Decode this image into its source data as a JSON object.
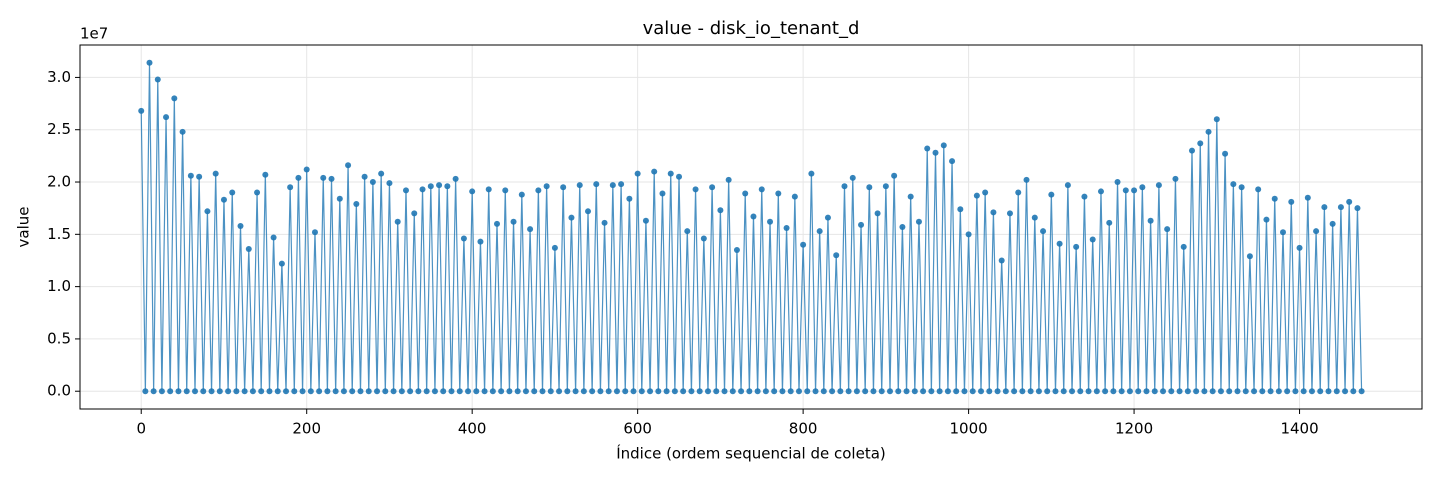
{
  "chart_data": {
    "type": "line",
    "title": "value - disk_io_tenant_d",
    "x_label": "Índice (ordem sequencial de coleta)",
    "y_label": "value",
    "y_offset_label": "1e7",
    "color": "#1f77b4",
    "grid": true,
    "xlim": [
      -74,
      1548
    ],
    "ylim": [
      -0.17,
      3.31
    ],
    "xticks": [
      0,
      200,
      400,
      600,
      800,
      1000,
      1200,
      1400
    ],
    "yticks": [
      {
        "value": 0,
        "label": "0.0"
      },
      0.5,
      {
        "value": 1,
        "label": "1.0"
      },
      1.5,
      {
        "value": 2,
        "label": "2.0"
      },
      2.5,
      {
        "value": 3,
        "label": "3.0"
      }
    ],
    "x": [
      0,
      5,
      10,
      15,
      20,
      25,
      30,
      35,
      40,
      45,
      50,
      55,
      60,
      65,
      70,
      75,
      80,
      85,
      90,
      95,
      100,
      105,
      110,
      115,
      120,
      125,
      130,
      135,
      140,
      145,
      150,
      155,
      160,
      165,
      170,
      175,
      180,
      185,
      190,
      195,
      200,
      205,
      210,
      215,
      220,
      225,
      230,
      235,
      240,
      245,
      250,
      255,
      260,
      265,
      270,
      275,
      280,
      285,
      290,
      295,
      300,
      305,
      310,
      315,
      320,
      325,
      330,
      335,
      340,
      345,
      350,
      355,
      360,
      365,
      370,
      375,
      380,
      385,
      390,
      395,
      400,
      405,
      410,
      415,
      420,
      425,
      430,
      435,
      440,
      445,
      450,
      455,
      460,
      465,
      470,
      475,
      480,
      485,
      490,
      495,
      500,
      505,
      510,
      515,
      520,
      525,
      530,
      535,
      540,
      545,
      550,
      555,
      560,
      565,
      570,
      575,
      580,
      585,
      590,
      595,
      600,
      605,
      610,
      615,
      620,
      625,
      630,
      635,
      640,
      645,
      650,
      655,
      660,
      665,
      670,
      675,
      680,
      685,
      690,
      695,
      700,
      705,
      710,
      715,
      720,
      725,
      730,
      735,
      740,
      745,
      750,
      755,
      760,
      765,
      770,
      775,
      780,
      785,
      790,
      795,
      800,
      805,
      810,
      815,
      820,
      825,
      830,
      835,
      840,
      845,
      850,
      855,
      860,
      865,
      870,
      875,
      880,
      885,
      890,
      895,
      900,
      905,
      910,
      915,
      920,
      925,
      930,
      935,
      940,
      945,
      950,
      955,
      960,
      965,
      970,
      975,
      980,
      985,
      990,
      995,
      1000,
      1005,
      1010,
      1015,
      1020,
      1025,
      1030,
      1035,
      1040,
      1045,
      1050,
      1055,
      1060,
      1065,
      1070,
      1075,
      1080,
      1085,
      1090,
      1095,
      1100,
      1105,
      1110,
      1115,
      1120,
      1125,
      1130,
      1135,
      1140,
      1145,
      1150,
      1155,
      1160,
      1165,
      1170,
      1175,
      1180,
      1185,
      1190,
      1195,
      1200,
      1205,
      1210,
      1215,
      1220,
      1225,
      1230,
      1235,
      1240,
      1245,
      1250,
      1255,
      1260,
      1265,
      1270,
      1275,
      1280,
      1285,
      1290,
      1295,
      1300,
      1305,
      1310,
      1315,
      1320,
      1325,
      1330,
      1335,
      1340,
      1345,
      1350,
      1355,
      1360,
      1365,
      1370,
      1375,
      1380,
      1385,
      1390,
      1395,
      1400,
      1405,
      1410,
      1415,
      1420,
      1425,
      1430,
      1435,
      1440,
      1445,
      1450,
      1455,
      1460,
      1465,
      1470,
      1475
    ],
    "values": [
      2.68,
      0,
      3.14,
      0,
      2.98,
      0,
      2.62,
      0,
      2.8,
      0,
      2.48,
      0,
      2.06,
      0,
      2.05,
      0,
      1.72,
      0,
      2.08,
      0,
      1.83,
      0,
      1.9,
      0,
      1.58,
      0,
      1.36,
      0,
      1.9,
      0,
      2.07,
      0,
      1.47,
      0,
      1.22,
      0,
      1.95,
      0,
      2.04,
      0,
      2.12,
      0,
      1.52,
      0,
      2.04,
      0,
      2.03,
      0,
      1.84,
      0,
      2.16,
      0,
      1.79,
      0,
      2.05,
      0,
      2.0,
      0,
      2.08,
      0,
      1.99,
      0,
      1.62,
      0,
      1.92,
      0,
      1.7,
      0,
      1.93,
      0,
      1.96,
      0,
      1.97,
      0,
      1.96,
      0,
      2.03,
      0,
      1.46,
      0,
      1.91,
      0,
      1.43,
      0,
      1.93,
      0,
      1.6,
      0,
      1.92,
      0,
      1.62,
      0,
      1.88,
      0,
      1.55,
      0,
      1.92,
      0,
      1.96,
      0,
      1.37,
      0,
      1.95,
      0,
      1.66,
      0,
      1.97,
      0,
      1.72,
      0,
      1.98,
      0,
      1.61,
      0,
      1.97,
      0,
      1.98,
      0,
      1.84,
      0,
      2.08,
      0,
      1.63,
      0,
      2.1,
      0,
      1.89,
      0,
      2.08,
      0,
      2.05,
      0,
      1.53,
      0,
      1.93,
      0,
      1.46,
      0,
      1.95,
      0,
      1.73,
      0,
      2.02,
      0,
      1.35,
      0,
      1.89,
      0,
      1.67,
      0,
      1.93,
      0,
      1.62,
      0,
      1.89,
      0,
      1.56,
      0,
      1.86,
      0,
      1.4,
      0,
      2.08,
      0,
      1.53,
      0,
      1.66,
      0,
      1.3,
      0,
      1.96,
      0,
      2.04,
      0,
      1.59,
      0,
      1.95,
      0,
      1.7,
      0,
      1.96,
      0,
      2.06,
      0,
      1.57,
      0,
      1.86,
      0,
      1.62,
      0,
      2.32,
      0,
      2.28,
      0,
      2.35,
      0,
      2.2,
      0,
      1.74,
      0,
      1.5,
      0,
      1.87,
      0,
      1.9,
      0,
      1.71,
      0,
      1.25,
      0,
      1.7,
      0,
      1.9,
      0,
      2.02,
      0,
      1.66,
      0,
      1.53,
      0,
      1.88,
      0,
      1.41,
      0,
      1.97,
      0,
      1.38,
      0,
      1.86,
      0,
      1.45,
      0,
      1.91,
      0,
      1.61,
      0,
      2.0,
      0,
      1.92,
      0,
      1.92,
      0,
      1.95,
      0,
      1.63,
      0,
      1.97,
      0,
      1.55,
      0,
      2.03,
      0,
      1.38,
      0,
      2.3,
      0,
      2.37,
      0,
      2.48,
      0,
      2.6,
      0,
      2.27,
      0,
      1.98,
      0,
      1.95,
      0,
      1.29,
      0,
      1.93,
      0,
      1.64,
      0,
      1.84,
      0,
      1.52,
      0,
      1.81,
      0,
      1.37,
      0,
      1.85,
      0,
      1.53,
      0,
      1.76,
      0,
      1.6,
      0,
      1.76,
      0,
      1.81,
      0,
      1.75,
      0
    ]
  }
}
